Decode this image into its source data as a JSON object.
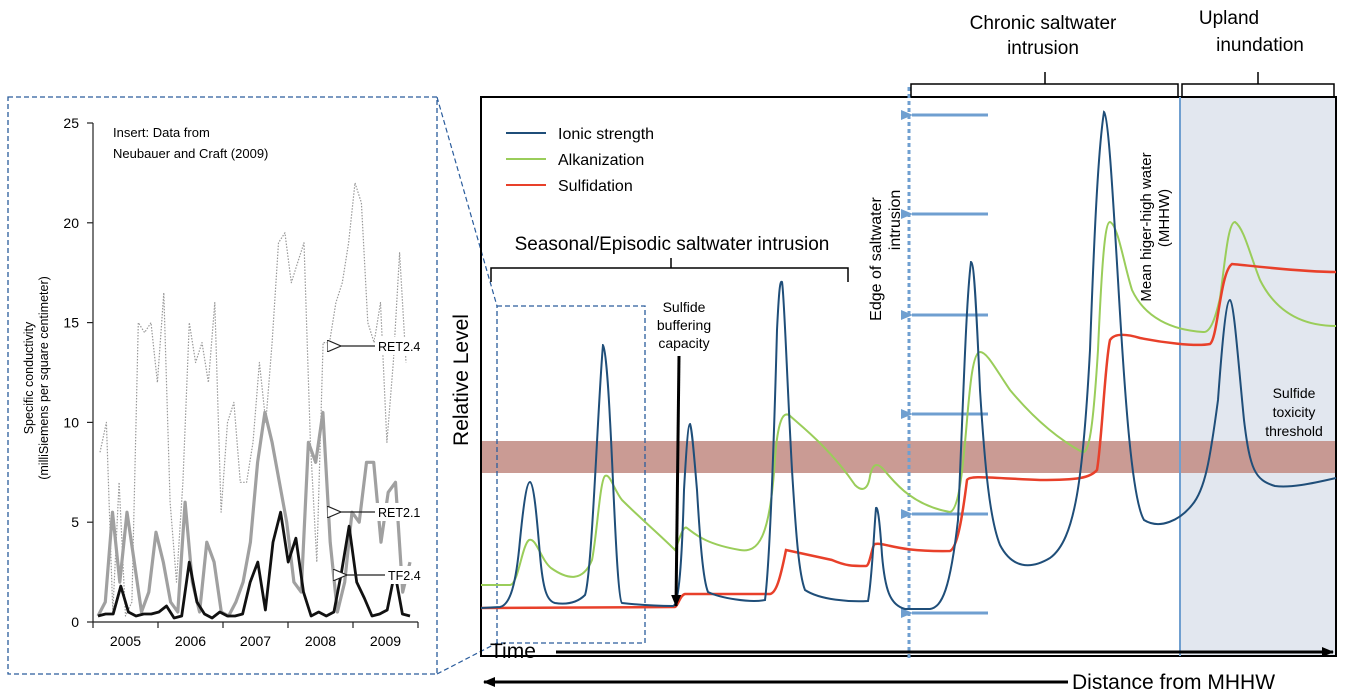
{
  "inset": {
    "title_line1": "Insert: Data from",
    "title_line2": "Neubauer and Craft (2009)",
    "ylabel_line1": "Specific conductivity",
    "ylabel_line2": "(milliSiemens per square centimeter)",
    "yticks": [
      "0",
      "5",
      "10",
      "15",
      "20",
      "25"
    ],
    "xticks": [
      "2005",
      "2006",
      "2007",
      "2008",
      "2009"
    ],
    "ylim": [
      0,
      25
    ],
    "series": [
      {
        "name": "RET2.4",
        "color": "#999999",
        "style": "dotted",
        "values": [
          8.5,
          10,
          0.5,
          7,
          0.3,
          1,
          15,
          14.5,
          15,
          12,
          16.5,
          6,
          2,
          7,
          15,
          13,
          14,
          12,
          16,
          5.5,
          10,
          11,
          7,
          7,
          9,
          13,
          10,
          14,
          19,
          19.5,
          17,
          18,
          19,
          9,
          3,
          14,
          14,
          16,
          17,
          19,
          22,
          21,
          15,
          14,
          16,
          9,
          13,
          18.5,
          13
        ]
      },
      {
        "name": "RET2.1",
        "color": "#a0a0a0",
        "style": "solid",
        "values": [
          0.3,
          1,
          5.5,
          2,
          5.5,
          3,
          0.5,
          1.5,
          4.5,
          3,
          1,
          0.5,
          6,
          2,
          0.5,
          4,
          3,
          0.5,
          0.3,
          1,
          2,
          4,
          8,
          10.5,
          9,
          7,
          5,
          2,
          1.5,
          9,
          8,
          10.5,
          4,
          0.5,
          2,
          5.5,
          5,
          8,
          8,
          4,
          6.5,
          7,
          1.5,
          3
        ]
      },
      {
        "name": "TF2.4",
        "color": "#111111",
        "style": "solid",
        "values": [
          0.3,
          0.4,
          0.4,
          1.8,
          0.5,
          0.3,
          0.4,
          0.4,
          0.5,
          0.8,
          0.2,
          0.3,
          3,
          1,
          0.4,
          0.2,
          0.5,
          0.3,
          0.3,
          0.4,
          2,
          3,
          0.6,
          4,
          5.5,
          3,
          4.2,
          1.5,
          0.3,
          0.5,
          0.3,
          0.5,
          2.5,
          4.8,
          2,
          1.2,
          0.3,
          0.4,
          0.6,
          2.5,
          0.4,
          0.3
        ]
      }
    ],
    "labels": [
      "RET2.4",
      "RET2.1",
      "TF2.4"
    ]
  },
  "main": {
    "ylabel": "Relative Level",
    "xlabel": "Time",
    "distance_label": "Distance from MHHW",
    "legend": [
      {
        "name": "Ionic strength",
        "color": "#1f4e79"
      },
      {
        "name": "Alkanization",
        "color": "#9acd5a"
      },
      {
        "name": "Sulfidation",
        "color": "#e8402a"
      }
    ],
    "annotations": {
      "seasonal": "Seasonal/Episodic saltwater intrusion",
      "buffer_line1": "Sulfide",
      "buffer_line2": "buffering",
      "buffer_line3": "capacity",
      "edge_line1": "Edge of saltwater",
      "edge_line2": "intrusion",
      "chronic_line1": "Chronic saltwater",
      "chronic_line2": "intrusion",
      "upland_line1": "Upland",
      "upland_line2": "inundation",
      "mhhw_line1": "Mean higer-high water",
      "mhhw_line2": "(MHHW)",
      "toxicity_line1": "Sulfide",
      "toxicity_line2": "toxicity",
      "toxicity_line3": "threshold"
    },
    "colors": {
      "threshold_band": "#c49088",
      "upland_shade": "#e2e7ef",
      "arrow_blue": "#6f9fd0",
      "dashed_box": "#2a5c9c"
    }
  }
}
